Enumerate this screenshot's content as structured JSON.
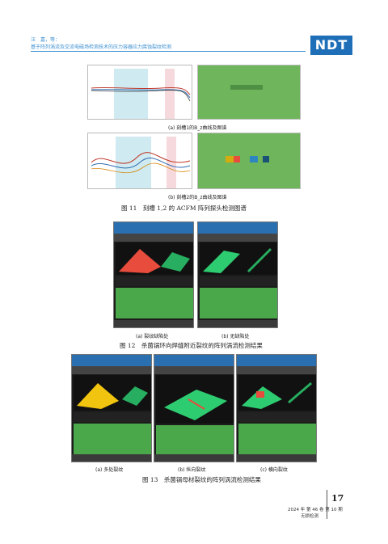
{
  "header": {
    "authors": "汪　嘉，等：",
    "title": "基于阵列涡流及交流电磁场检测技术的压力容器应力腐蚀裂纹检测",
    "logo": "NDT"
  },
  "figure11": {
    "sub_a": "(a) 刻槽1的B_z曲线及图谱",
    "sub_b": "(b) 刻槽2的B_z曲线及图谱",
    "caption": "图 11　刻槽 1,2 的 ACFM 阵列探头检测图谱"
  },
  "figure12": {
    "sub_a": "(a) 裂纹缺陷处",
    "sub_b": "(b) 无缺陷处",
    "caption": "图 12　杀菌锅环向焊缝附近裂纹的阵列涡流检测结果"
  },
  "figure13": {
    "sub_a": "(a) 多处裂纹",
    "sub_b": "(b) 纵向裂纹",
    "sub_c": "(c) 横向裂纹",
    "caption": "图 13　杀菌锅母材裂纹的阵列涡流检测结果"
  },
  "footer": {
    "page": "17",
    "issue": "2024 年 第 46 卷 第 10 期",
    "journal": "无损检测"
  },
  "colors": {
    "header_blue": "#3b8fd0",
    "logo_blue": "#1f6fb8",
    "map_green": "#6fb55b"
  }
}
